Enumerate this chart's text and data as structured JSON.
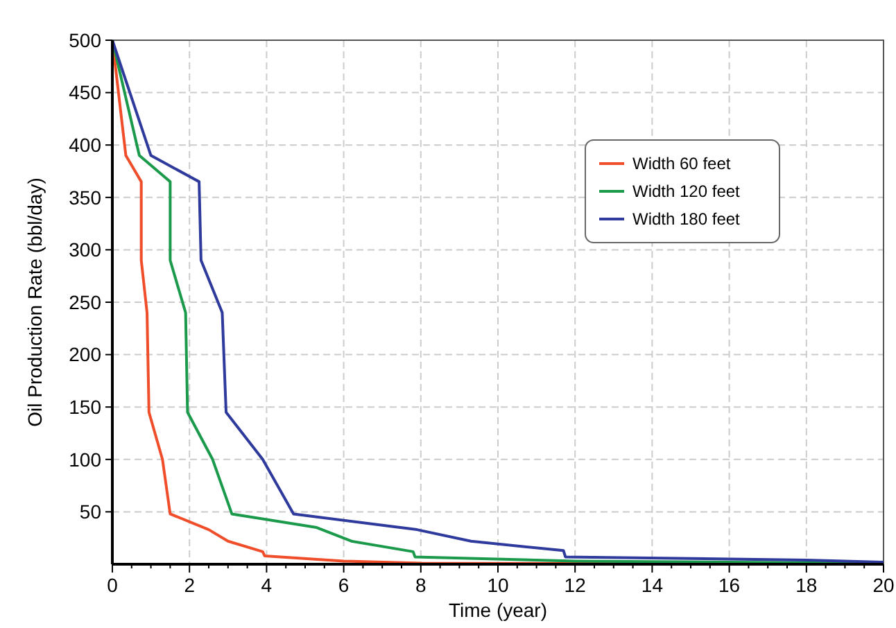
{
  "chart_data": {
    "type": "line",
    "xlabel": "Time (year)",
    "ylabel": "Oil Production Rate (bbl/day)",
    "xlim": [
      0,
      20
    ],
    "ylim": [
      0,
      500
    ],
    "xticks": [
      0,
      2,
      4,
      6,
      8,
      10,
      12,
      14,
      16,
      18,
      20
    ],
    "yticks": [
      50,
      100,
      150,
      200,
      250,
      300,
      350,
      400,
      450,
      500
    ],
    "grid": true,
    "legend": "top right",
    "marker": "none",
    "line_style": "solid",
    "series": [
      {
        "name": "Width 60 feet",
        "color": "#f04e2a",
        "x": [
          0,
          0.35,
          0.75,
          0.75,
          0.9,
          0.95,
          1.3,
          1.5,
          2.5,
          3.0,
          3.9,
          3.95,
          6,
          8,
          20
        ],
        "values": [
          500,
          390,
          365,
          290,
          240,
          145,
          100,
          48,
          33,
          22,
          12,
          8,
          3,
          1,
          0
        ]
      },
      {
        "name": "Width 120 feet",
        "color": "#1a9a4a",
        "x": [
          0,
          0.7,
          1.5,
          1.5,
          1.9,
          1.95,
          2.6,
          3.1,
          5.3,
          6.2,
          7.8,
          7.85,
          12,
          20
        ],
        "values": [
          500,
          390,
          365,
          290,
          240,
          145,
          100,
          48,
          35,
          22,
          12,
          7,
          3,
          1
        ]
      },
      {
        "name": "Width 180 feet",
        "color": "#2e3a9c",
        "x": [
          0,
          1,
          2.25,
          2.3,
          2.85,
          2.95,
          3.9,
          4.7,
          7.9,
          9.3,
          11.7,
          11.75,
          18,
          20
        ],
        "values": [
          500,
          390,
          365,
          290,
          240,
          145,
          100,
          48,
          33,
          22,
          13,
          7,
          4,
          2
        ]
      }
    ]
  }
}
